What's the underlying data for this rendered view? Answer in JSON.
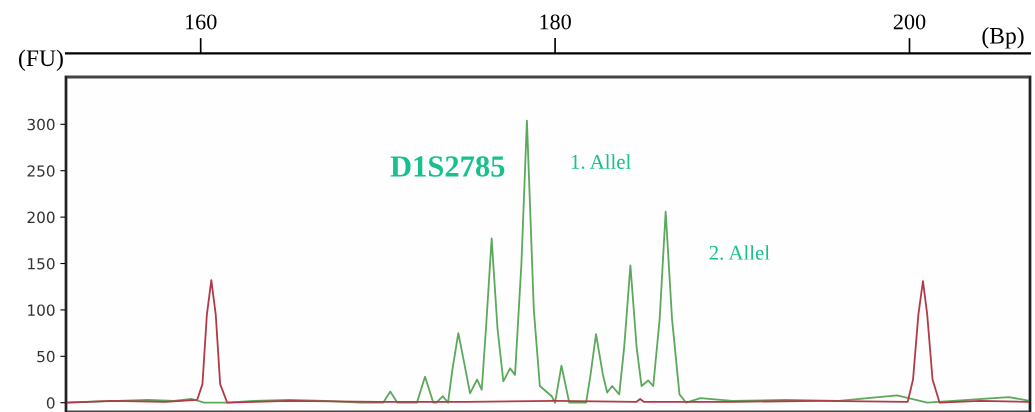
{
  "chart_data": {
    "type": "line",
    "title": "D1S2785",
    "xlabel": "(Bp)",
    "ylabel": "(FU)",
    "xlim": [
      152.4,
      206.8
    ],
    "xticks": [
      160,
      180,
      200
    ],
    "ylim": [
      -10,
      351
    ],
    "yticks": [
      0,
      50,
      100,
      150,
      200,
      250,
      300
    ],
    "grid": false,
    "legend": false,
    "marker": "none",
    "line_style": "solid",
    "series": [
      {
        "color": "#5ca85c",
        "x": [
          152.4,
          157,
          158.5,
          159.5,
          160.2,
          161.5,
          163,
          165,
          167,
          169,
          170.3,
          170.7,
          171.1,
          172.0,
          172.2,
          172.66,
          173.13,
          173.3,
          173.67,
          173.96,
          174.2,
          174.54,
          174.9,
          175.2,
          175.6,
          175.86,
          176.1,
          176.42,
          176.75,
          177.08,
          177.46,
          177.74,
          178.1,
          178.41,
          178.8,
          179.14,
          179.81,
          180.0,
          180.36,
          180.8,
          181.75,
          182.0,
          182.31,
          182.7,
          182.94,
          183.22,
          183.62,
          183.9,
          184.25,
          184.6,
          184.88,
          185.25,
          185.54,
          185.9,
          186.24,
          186.6,
          187.02,
          187.4,
          188.2,
          190,
          193,
          196,
          199.3,
          201,
          205.6,
          206.8
        ],
        "values": [
          0,
          3,
          2,
          4,
          0,
          0,
          2,
          3,
          2,
          0,
          0,
          12,
          0,
          0,
          0,
          28,
          0,
          0,
          7,
          0,
          35,
          75,
          40,
          10,
          25,
          14,
          80,
          177,
          80,
          23,
          37,
          30,
          150,
          304,
          100,
          18,
          7,
          0,
          40,
          0,
          0,
          30,
          74,
          30,
          11,
          18,
          9,
          60,
          148,
          60,
          18,
          24,
          18,
          90,
          206,
          90,
          9,
          0,
          5,
          2,
          3,
          2,
          8,
          0,
          6,
          2
        ]
      },
      {
        "color": "#b23a48",
        "x": [
          152.4,
          155,
          158,
          159.8,
          160.1,
          160.35,
          160.6,
          160.85,
          161.1,
          161.5,
          165,
          170,
          175,
          180,
          184.6,
          184.8,
          185.0,
          190,
          195,
          199.9,
          200.2,
          200.5,
          200.76,
          201.0,
          201.3,
          201.7,
          204,
          206.8
        ],
        "values": [
          0,
          2,
          1,
          3,
          20,
          95,
          132,
          95,
          20,
          0,
          2,
          1,
          1,
          2,
          1,
          4,
          1,
          1,
          2,
          1,
          25,
          95,
          131,
          95,
          25,
          0,
          2,
          1
        ]
      }
    ],
    "annotations": [
      {
        "text": "1. Allel",
        "x": 178.41,
        "y": 304
      },
      {
        "text": "2. Allel",
        "x": 186.24,
        "y": 206
      }
    ]
  }
}
